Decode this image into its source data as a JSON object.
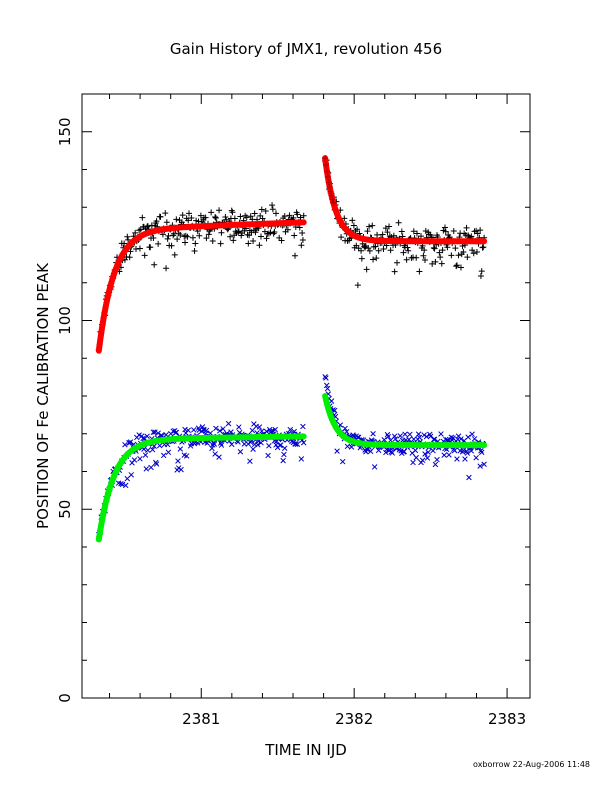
{
  "chart_data": {
    "type": "scatter",
    "title": "Gain History of JMX1, revolution 456",
    "xlabel": "TIME IN IJD",
    "ylabel": "POSITION OF Fe CALIBRATION PEAK",
    "xlim": [
      2380.22,
      2383.15
    ],
    "ylim": [
      0,
      160
    ],
    "xticks": [
      2381,
      2382,
      2383
    ],
    "yticks": [
      0,
      50,
      100,
      150
    ],
    "grid": false,
    "footer": "oxborrow 22-Aug-2006 11:48",
    "colors": {
      "upper_data": "#000000",
      "upper_fit": "#ff0000",
      "lower_data": "#0000cc",
      "lower_fit": "#00ee00"
    },
    "series": [
      {
        "marker": "plus",
        "color": "#000000",
        "segments": [
          {
            "x_start": 2380.33,
            "x_end": 2381.67,
            "start_y": 92,
            "plateau_y": 124,
            "tau": 0.1,
            "drift_per_day": 1.5,
            "scatter": 3.5,
            "outlier_fraction": 0.1,
            "outlier_depth": 10,
            "n_points": 260
          },
          {
            "x_start": 2381.81,
            "x_end": 2382.85,
            "start_y": 144,
            "plateau_y": 121,
            "tau": 0.07,
            "drift_per_day": 0,
            "scatter": 3.5,
            "outlier_fraction": 0.12,
            "outlier_depth": 10,
            "n_points": 200
          }
        ]
      },
      {
        "type": "line",
        "color": "#ff0000",
        "segments": [
          {
            "x_start": 2380.33,
            "x_end": 2381.67,
            "start_y": 92,
            "plateau_y": 124,
            "tau": 0.1,
            "drift_per_day": 1.5
          },
          {
            "x_start": 2381.81,
            "x_end": 2382.85,
            "start_y": 143,
            "plateau_y": 121,
            "tau": 0.07,
            "drift_per_day": 0
          }
        ]
      },
      {
        "marker": "cross",
        "color": "#0000cc",
        "segments": [
          {
            "x_start": 2380.33,
            "x_end": 2381.67,
            "start_y": 43,
            "plateau_y": 68.5,
            "tau": 0.1,
            "drift_per_day": 0.6,
            "scatter": 2.5,
            "outlier_fraction": 0.12,
            "outlier_depth": 8,
            "n_points": 260
          },
          {
            "x_start": 2381.81,
            "x_end": 2382.85,
            "start_y": 85,
            "plateau_y": 67,
            "tau": 0.07,
            "drift_per_day": 0,
            "scatter": 2.5,
            "outlier_fraction": 0.12,
            "outlier_depth": 8,
            "n_points": 200
          }
        ]
      },
      {
        "type": "line",
        "color": "#00ee00",
        "segments": [
          {
            "x_start": 2380.33,
            "x_end": 2381.67,
            "start_y": 42,
            "plateau_y": 68.5,
            "tau": 0.1,
            "drift_per_day": 0.6
          },
          {
            "x_start": 2381.81,
            "x_end": 2382.85,
            "start_y": 80,
            "plateau_y": 67,
            "tau": 0.07,
            "drift_per_day": 0
          }
        ]
      }
    ]
  }
}
